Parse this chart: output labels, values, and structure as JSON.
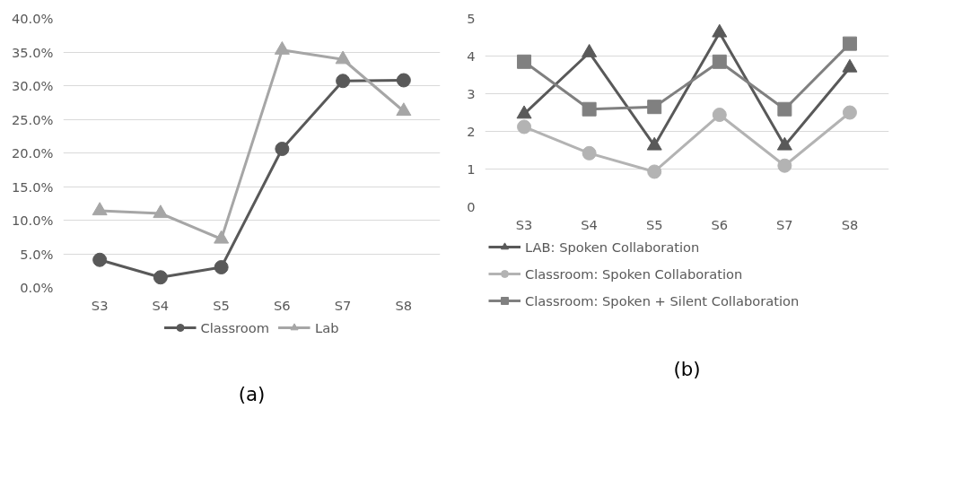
{
  "chart_data": [
    {
      "type": "line",
      "categories": [
        "S3",
        "S4",
        "S5",
        "S6",
        "S7",
        "S8"
      ],
      "series": [
        {
          "name": "Classroom",
          "color": "#595959",
          "marker": "circle",
          "values": [
            4.1,
            1.5,
            3.0,
            20.6,
            30.7,
            30.8
          ]
        },
        {
          "name": "Lab",
          "color": "#a6a6a6",
          "marker": "triangle",
          "values": [
            11.4,
            11.0,
            7.2,
            35.3,
            33.9,
            26.2
          ]
        }
      ],
      "ylim": [
        0,
        40
      ],
      "yticks": [
        {
          "value": 0,
          "label": "0.0%"
        },
        {
          "value": 5,
          "label": "5.0%"
        },
        {
          "value": 10,
          "label": "10.0%"
        },
        {
          "value": 15,
          "label": "15.0%"
        },
        {
          "value": 20,
          "label": "20.0%"
        },
        {
          "value": 25,
          "label": "25.0%"
        },
        {
          "value": 30,
          "label": "30.0%"
        },
        {
          "value": 35,
          "label": "35.0%"
        },
        {
          "value": 40,
          "label": "40.0%"
        }
      ],
      "grid": "y",
      "legend": "bottom",
      "line_style": "solid",
      "annotations": [
        "(a)"
      ]
    },
    {
      "type": "line",
      "categories": [
        "S3",
        "S4",
        "S5",
        "S6",
        "S7",
        "S8"
      ],
      "series": [
        {
          "name": "LAB: Spoken Collaboration",
          "color": "#595959",
          "marker": "triangle",
          "values": [
            2.46,
            4.09,
            1.62,
            4.62,
            1.62,
            3.69
          ]
        },
        {
          "name": "Classroom: Spoken Collaboration",
          "color": "#b3b3b3",
          "marker": "circle",
          "values": [
            2.12,
            1.42,
            0.93,
            2.44,
            1.09,
            2.5
          ]
        },
        {
          "name": "Classroom: Spoken + Silent Collaboration",
          "color": "#808080",
          "marker": "square",
          "values": [
            3.85,
            2.59,
            2.65,
            3.85,
            2.59,
            4.33
          ]
        }
      ],
      "ylim": [
        0,
        5
      ],
      "yticks": [
        0,
        1,
        2,
        3,
        4,
        5
      ],
      "grid": "y",
      "legend": "bottom",
      "line_style": "solid",
      "annotations": [
        "(b)"
      ]
    }
  ]
}
